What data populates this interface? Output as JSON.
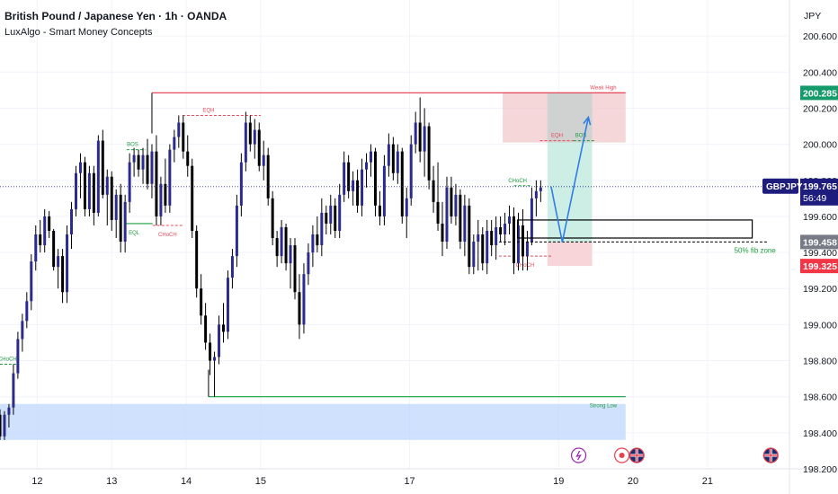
{
  "header": {
    "title": "British Pound / Japanese Yen · 1h · OANDA",
    "indicator": "LuxAlgo - Smart Money Concepts"
  },
  "currency": "JPY",
  "colors": {
    "up_body": "#2a2a8f",
    "down_body": "#000000",
    "wick": "#000000",
    "bearish_zone": "#f2c8cc",
    "bullish_zone": "#bfd7fb",
    "target_zone": "#c6ece2",
    "stop_zone": "#f7d3d6",
    "grey_zone": "#cfcfcf",
    "green_level": "#1e9c3d",
    "red_level": "#e74a5c",
    "projection_arrow": "#2f7ee6",
    "price_badge": "#1e1c7c",
    "tp_badge": "#159a6c",
    "fib_badge": "#787b86",
    "sl_badge": "#f23645"
  },
  "chart_data": {
    "type": "candlestick",
    "symbol": "GBPJPY",
    "y_unit": "JPY",
    "ylim": [
      198.2,
      200.8
    ],
    "xlim": [
      11.5,
      22.1
    ],
    "y_ticks": [
      "200.600",
      "200.400",
      "200.200",
      "200.000",
      "199.800",
      "199.600",
      "199.400",
      "199.200",
      "199.000",
      "198.800",
      "198.600",
      "198.400",
      "198.200"
    ],
    "x_ticks": [
      {
        "x": 12,
        "label": "12"
      },
      {
        "x": 13,
        "label": "13"
      },
      {
        "x": 14,
        "label": "14"
      },
      {
        "x": 15,
        "label": "15"
      },
      {
        "x": 17,
        "label": "17"
      },
      {
        "x": 19,
        "label": "19"
      },
      {
        "x": 20,
        "label": "20"
      },
      {
        "x": 21,
        "label": "21"
      }
    ],
    "candles": [
      [
        11.5,
        198.5,
        198.53,
        198.36,
        198.38
      ],
      [
        11.56,
        198.38,
        198.52,
        198.36,
        198.5
      ],
      [
        11.62,
        198.5,
        198.56,
        198.43,
        198.54
      ],
      [
        11.68,
        198.54,
        198.78,
        198.5,
        198.73
      ],
      [
        11.74,
        198.73,
        198.96,
        198.7,
        198.92
      ],
      [
        11.8,
        198.92,
        199.06,
        198.85,
        199.02
      ],
      [
        11.86,
        199.02,
        199.18,
        198.98,
        199.13
      ],
      [
        11.92,
        199.13,
        199.39,
        199.08,
        199.35
      ],
      [
        11.98,
        199.35,
        199.55,
        199.3,
        199.5
      ],
      [
        12.04,
        199.5,
        199.58,
        199.4,
        199.44
      ],
      [
        12.1,
        199.44,
        199.64,
        199.4,
        199.6
      ],
      [
        12.16,
        199.6,
        199.63,
        199.48,
        199.52
      ],
      [
        12.22,
        199.52,
        199.53,
        199.3,
        199.32
      ],
      [
        12.28,
        199.32,
        199.42,
        199.2,
        199.38
      ],
      [
        12.34,
        199.38,
        199.42,
        199.12,
        199.18
      ],
      [
        12.4,
        199.18,
        199.55,
        199.12,
        199.5
      ],
      [
        12.46,
        199.5,
        199.68,
        199.42,
        199.64
      ],
      [
        12.52,
        199.64,
        199.88,
        199.6,
        199.84
      ],
      [
        12.58,
        199.84,
        199.95,
        199.7,
        199.9
      ],
      [
        12.64,
        199.9,
        199.93,
        199.6,
        199.64
      ],
      [
        12.7,
        199.64,
        199.88,
        199.6,
        199.84
      ],
      [
        12.76,
        199.84,
        199.88,
        199.55,
        199.62
      ],
      [
        12.82,
        199.62,
        200.05,
        199.6,
        200.02
      ],
      [
        12.88,
        200.02,
        200.08,
        199.7,
        199.72
      ],
      [
        12.94,
        199.72,
        199.86,
        199.55,
        199.82
      ],
      [
        13.0,
        199.82,
        199.85,
        199.52,
        199.58
      ],
      [
        13.06,
        199.58,
        199.75,
        199.48,
        199.72
      ],
      [
        13.12,
        199.72,
        199.78,
        199.4,
        199.46
      ],
      [
        13.18,
        199.46,
        199.72,
        199.4,
        199.68
      ],
      [
        13.24,
        199.68,
        199.95,
        199.62,
        199.9
      ],
      [
        13.3,
        199.9,
        199.98,
        199.82,
        199.94
      ],
      [
        13.36,
        199.94,
        199.97,
        199.82,
        199.86
      ],
      [
        13.42,
        199.86,
        199.98,
        199.78,
        199.94
      ],
      [
        13.48,
        199.94,
        200.03,
        199.75,
        199.78
      ],
      [
        13.54,
        199.78,
        200.0,
        199.7,
        199.96
      ],
      [
        13.6,
        199.96,
        200.05,
        199.55,
        199.6
      ],
      [
        13.66,
        199.6,
        199.82,
        199.55,
        199.78
      ],
      [
        13.72,
        199.78,
        199.92,
        199.62,
        199.66
      ],
      [
        13.78,
        199.66,
        200.0,
        199.62,
        199.97
      ],
      [
        13.84,
        199.97,
        200.08,
        199.9,
        200.04
      ],
      [
        13.9,
        200.04,
        200.16,
        199.98,
        200.12
      ],
      [
        13.96,
        200.12,
        200.16,
        199.92,
        199.96
      ],
      [
        14.02,
        199.96,
        200.05,
        199.82,
        199.88
      ],
      [
        14.08,
        199.88,
        199.92,
        199.48,
        199.52
      ],
      [
        14.14,
        199.52,
        199.55,
        199.15,
        199.2
      ],
      [
        14.2,
        199.2,
        199.28,
        199.0,
        199.05
      ],
      [
        14.26,
        199.05,
        199.12,
        198.86,
        198.9
      ],
      [
        14.32,
        198.9,
        198.95,
        198.72,
        198.8
      ],
      [
        14.38,
        198.8,
        198.85,
        198.6,
        198.82
      ],
      [
        14.44,
        198.82,
        199.05,
        198.78,
        199.0
      ],
      [
        14.5,
        199.0,
        199.12,
        198.9,
        198.96
      ],
      [
        14.56,
        198.96,
        199.3,
        198.92,
        199.26
      ],
      [
        14.62,
        199.26,
        199.42,
        199.2,
        199.38
      ],
      [
        14.68,
        199.38,
        199.72,
        199.32,
        199.66
      ],
      [
        14.74,
        199.66,
        199.95,
        199.6,
        199.9
      ],
      [
        14.8,
        199.9,
        200.18,
        199.85,
        200.12
      ],
      [
        14.86,
        200.12,
        200.16,
        199.96,
        200.0
      ],
      [
        14.92,
        200.0,
        200.14,
        199.92,
        200.08
      ],
      [
        14.98,
        200.08,
        200.12,
        199.85,
        199.88
      ],
      [
        15.04,
        199.88,
        200.02,
        199.8,
        199.94
      ],
      [
        15.1,
        199.94,
        199.98,
        199.66,
        199.7
      ],
      [
        15.16,
        199.7,
        199.74,
        199.44,
        199.48
      ],
      [
        15.22,
        199.48,
        199.52,
        199.32,
        199.38
      ],
      [
        15.28,
        199.38,
        199.58,
        199.34,
        199.54
      ],
      [
        15.34,
        199.54,
        199.56,
        199.3,
        199.34
      ],
      [
        15.4,
        199.34,
        199.48,
        199.2,
        199.44
      ],
      [
        15.46,
        199.44,
        199.48,
        199.14,
        199.18
      ],
      [
        15.52,
        199.18,
        199.28,
        198.92,
        199.0
      ],
      [
        15.58,
        199.0,
        199.34,
        198.95,
        199.28
      ],
      [
        15.64,
        199.28,
        199.45,
        199.22,
        199.4
      ],
      [
        15.7,
        199.4,
        199.55,
        199.32,
        199.5
      ],
      [
        15.76,
        199.5,
        199.6,
        199.4,
        199.44
      ],
      [
        15.82,
        199.44,
        199.7,
        199.38,
        199.62
      ],
      [
        15.88,
        199.62,
        199.66,
        199.5,
        199.56
      ],
      [
        15.94,
        199.56,
        199.72,
        199.5,
        199.66
      ],
      [
        16.0,
        199.66,
        199.7,
        199.48,
        199.52
      ],
      [
        16.06,
        199.52,
        199.78,
        199.48,
        199.72
      ],
      [
        16.12,
        199.72,
        199.96,
        199.68,
        199.9
      ],
      [
        16.18,
        199.9,
        199.94,
        199.7,
        199.74
      ],
      [
        16.24,
        199.74,
        199.85,
        199.66,
        199.8
      ],
      [
        16.3,
        199.8,
        199.86,
        199.62,
        199.66
      ],
      [
        16.36,
        199.66,
        199.92,
        199.6,
        199.86
      ],
      [
        16.42,
        199.86,
        199.95,
        199.76,
        199.9
      ],
      [
        16.48,
        199.9,
        200.0,
        199.82,
        199.96
      ],
      [
        16.54,
        199.96,
        199.98,
        199.6,
        199.66
      ],
      [
        16.6,
        199.66,
        199.74,
        199.55,
        199.6
      ],
      [
        16.66,
        199.6,
        199.94,
        199.55,
        199.88
      ],
      [
        16.72,
        199.88,
        200.06,
        199.82,
        200.0
      ],
      [
        16.78,
        200.0,
        200.04,
        199.8,
        199.84
      ],
      [
        16.84,
        199.84,
        200.0,
        199.78,
        199.96
      ],
      [
        16.9,
        199.96,
        199.98,
        199.56,
        199.6
      ],
      [
        16.96,
        199.6,
        199.76,
        199.48,
        199.7
      ],
      [
        17.02,
        199.7,
        200.05,
        199.66,
        200.0
      ],
      [
        17.08,
        200.0,
        200.18,
        199.95,
        200.12
      ],
      [
        17.14,
        200.12,
        200.26,
        199.9,
        199.96
      ],
      [
        17.2,
        199.96,
        200.2,
        199.82,
        200.1
      ],
      [
        17.26,
        200.1,
        200.12,
        199.75,
        199.8
      ],
      [
        17.32,
        199.8,
        199.88,
        199.62,
        199.68
      ],
      [
        17.38,
        199.68,
        199.9,
        199.52,
        199.56
      ],
      [
        17.44,
        199.56,
        199.68,
        199.38,
        199.46
      ],
      [
        17.5,
        199.46,
        199.82,
        199.42,
        199.76
      ],
      [
        17.56,
        199.76,
        199.82,
        199.56,
        199.6
      ],
      [
        17.62,
        199.6,
        199.78,
        199.55,
        199.72
      ],
      [
        17.68,
        199.72,
        199.75,
        199.42,
        199.46
      ],
      [
        17.74,
        199.46,
        199.72,
        199.38,
        199.66
      ],
      [
        17.8,
        199.66,
        199.7,
        199.28,
        199.32
      ],
      [
        17.86,
        199.32,
        199.5,
        199.28,
        199.46
      ],
      [
        17.92,
        199.46,
        199.58,
        199.3,
        199.5
      ],
      [
        17.98,
        199.5,
        199.54,
        199.3,
        199.34
      ],
      [
        18.04,
        199.34,
        199.58,
        199.28,
        199.52
      ],
      [
        18.1,
        199.52,
        199.58,
        199.38,
        199.44
      ],
      [
        18.16,
        199.44,
        199.6,
        199.36,
        199.54
      ],
      [
        18.22,
        199.54,
        199.6,
        199.46,
        199.5
      ],
      [
        18.28,
        199.5,
        199.62,
        199.44,
        199.56
      ],
      [
        18.34,
        199.56,
        199.66,
        199.5,
        199.6
      ],
      [
        18.4,
        199.6,
        199.65,
        199.28,
        199.34
      ],
      [
        18.46,
        199.34,
        199.62,
        199.3,
        199.55
      ],
      [
        18.52,
        199.55,
        199.64,
        199.3,
        199.38
      ],
      [
        18.58,
        199.38,
        199.52,
        199.3,
        199.46
      ]
    ],
    "live_candles": [
      [
        18.64,
        199.46,
        199.76,
        199.44,
        199.7
      ],
      [
        18.7,
        199.7,
        199.8,
        199.6,
        199.74
      ],
      [
        18.76,
        199.74,
        199.8,
        199.68,
        199.76
      ]
    ],
    "levels": [
      {
        "label": "Weak High",
        "y": 200.285,
        "x0": 13.54,
        "x1": 19.9,
        "color": "red",
        "text_at": 19.6
      },
      {
        "label": "Strong Low",
        "y": 198.6,
        "x0": 14.3,
        "x1": 19.9,
        "color": "green",
        "text_at": 19.6
      },
      {
        "label": "EQH",
        "y": 200.16,
        "x0": 13.95,
        "x1": 15.0,
        "dashed": true,
        "color": "red",
        "text_at": 14.3
      },
      {
        "label": "EQH",
        "y": 200.02,
        "x0": 18.75,
        "x1": 19.2,
        "dashed": true,
        "color": "red",
        "text_at": 18.98
      },
      {
        "label": "BOS",
        "y": 199.97,
        "x0": 13.2,
        "x1": 13.45,
        "dashed": true,
        "color": "green",
        "text_at": 13.28
      },
      {
        "label": "BOS",
        "y": 200.02,
        "x0": 19.2,
        "x1": 19.5,
        "dashed": true,
        "color": "green",
        "text_at": 19.3
      },
      {
        "label": "EQL",
        "y": 199.56,
        "x0": 13.18,
        "x1": 13.55,
        "dashed": false,
        "color": "green",
        "text_at": 13.3
      },
      {
        "label": "CHoCH",
        "y": 199.55,
        "x0": 13.55,
        "x1": 13.95,
        "dashed": true,
        "color": "red",
        "text_at": 13.75
      },
      {
        "label": "CHoCH",
        "y": 199.77,
        "x0": 18.4,
        "x1": 18.64,
        "dashed": true,
        "color": "green",
        "text_at": 18.45
      },
      {
        "label": "CHoCH",
        "y": 199.38,
        "x0": 18.2,
        "x1": 18.9,
        "dashed": true,
        "color": "red",
        "text_at": 18.55
      },
      {
        "label": "CHoCH",
        "y": 198.78,
        "x0": 11.5,
        "x1": 11.73,
        "dashed": true,
        "color": "green",
        "text_at": 11.6
      }
    ],
    "zones": [
      {
        "name": "supply-zone",
        "x0": 18.25,
        "x1": 19.9,
        "y0": 200.01,
        "y1": 200.29,
        "kind": "bearish"
      },
      {
        "name": "demand-zone",
        "x0": 11.5,
        "x1": 19.9,
        "y0": 198.36,
        "y1": 198.56,
        "kind": "bullish"
      }
    ],
    "entry_box": {
      "x0": 18.45,
      "x1": 21.6,
      "y0": 199.48,
      "y1": 199.58,
      "label": "50% fib zone",
      "fib_y": 199.458
    },
    "position": {
      "x0": 18.85,
      "x1": 19.45,
      "entry": 199.458,
      "target": 200.285,
      "stop": 199.325,
      "grey_top": 200.285,
      "grey_bottom": 200.01
    },
    "projection": [
      [
        18.9,
        199.765
      ],
      [
        19.05,
        199.458
      ],
      [
        19.4,
        200.15
      ]
    ],
    "price_labels": [
      {
        "value": "200.285",
        "y": 200.285,
        "kind": "tp"
      },
      {
        "value": "199.765",
        "y": 199.765,
        "kind": "price",
        "symbol": "GBPJPY",
        "countdown": "56:49"
      },
      {
        "value": "199.458",
        "y": 199.458,
        "kind": "fib"
      },
      {
        "value": "199.325",
        "y": 199.325,
        "kind": "sl"
      }
    ],
    "current_price": 199.765,
    "events": [
      {
        "x": 19.27,
        "icon": "lightning-icon"
      },
      {
        "x": 19.85,
        "icon": "record-icon"
      },
      {
        "x": 20.05,
        "icon": "uk-flag-icon"
      },
      {
        "x": 21.85,
        "icon": "uk-flag-icon"
      }
    ]
  }
}
